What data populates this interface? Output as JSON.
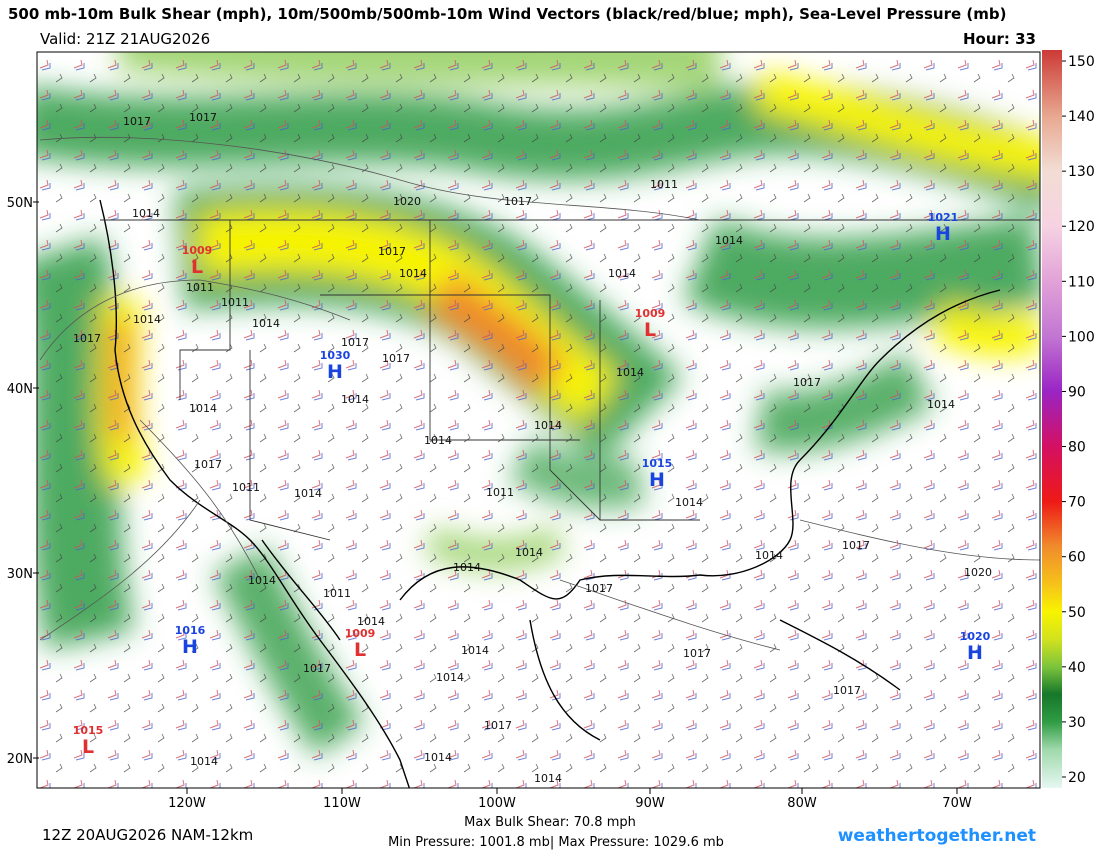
{
  "header": {
    "title": "500 mb-10m Bulk Shear (mph), 10m/500mb/500mb-10m Wind Vectors (black/red/blue; mph), Sea-Level Pressure (mb)",
    "valid": "Valid: 21Z 21AUG2026",
    "hour": "Hour: 33"
  },
  "map": {
    "lat_labels": [
      "50N",
      "40N",
      "30N",
      "20N"
    ],
    "lon_labels": [
      "120W",
      "110W",
      "100W",
      "90W",
      "80W",
      "70W"
    ],
    "isobar_labels": [
      "1017",
      "1017",
      "1020",
      "1017",
      "1011",
      "1014",
      "1014",
      "1017",
      "1014",
      "1014",
      "1011",
      "1011",
      "1014",
      "1014",
      "1017",
      "1017",
      "1017",
      "1014",
      "1017",
      "1014",
      "1014",
      "1014",
      "1014",
      "1014",
      "1017",
      "1011",
      "1014",
      "1011",
      "1014",
      "1014",
      "1014",
      "1017",
      "1014",
      "1020",
      "1014",
      "1011",
      "1017",
      "1014",
      "1014",
      "1017",
      "1014",
      "1017",
      "1017",
      "1017",
      "1014",
      "1014",
      "1014"
    ],
    "centers": [
      {
        "symbol": "L",
        "pressure": "1009"
      },
      {
        "symbol": "H",
        "pressure": "1030"
      },
      {
        "symbol": "L",
        "pressure": "1009"
      },
      {
        "symbol": "H",
        "pressure": "1015"
      },
      {
        "symbol": "H",
        "pressure": "1021"
      },
      {
        "symbol": "H",
        "pressure": "1016"
      },
      {
        "symbol": "L",
        "pressure": "1009"
      },
      {
        "symbol": "H",
        "pressure": "1020"
      },
      {
        "symbol": "L",
        "pressure": "1015"
      }
    ]
  },
  "colorbar": {
    "lim": [
      18,
      152
    ],
    "ticks": [
      20,
      30,
      40,
      50,
      60,
      70,
      80,
      90,
      100,
      110,
      120,
      130,
      140,
      150
    ],
    "colors": [
      {
        "value": 18,
        "color": "#e6f7f2"
      },
      {
        "value": 25,
        "color": "#9fd9ab"
      },
      {
        "value": 30,
        "color": "#2f9c44"
      },
      {
        "value": 35,
        "color": "#16772a"
      },
      {
        "value": 40,
        "color": "#7cc43c"
      },
      {
        "value": 45,
        "color": "#d2e21e"
      },
      {
        "value": 50,
        "color": "#f8f400"
      },
      {
        "value": 55,
        "color": "#f6c21a"
      },
      {
        "value": 62,
        "color": "#f08a2c"
      },
      {
        "value": 70,
        "color": "#ee1a16"
      },
      {
        "value": 80,
        "color": "#d41062"
      },
      {
        "value": 90,
        "color": "#9a24c4"
      },
      {
        "value": 100,
        "color": "#c276d2"
      },
      {
        "value": 110,
        "color": "#e2a2d8"
      },
      {
        "value": 120,
        "color": "#f6d2e2"
      },
      {
        "value": 130,
        "color": "#f2ddd4"
      },
      {
        "value": 140,
        "color": "#e8a890"
      },
      {
        "value": 152,
        "color": "#cc3a36"
      }
    ]
  },
  "footer": {
    "run": "12Z 20AUG2026 NAM-12km",
    "max_shear": "Max Bulk Shear:  70.8 mph",
    "pressure_range": "Min Pressure: 1001.8 mb| Max Pressure: 1029.6 mb",
    "site": "weathertogether.net"
  }
}
